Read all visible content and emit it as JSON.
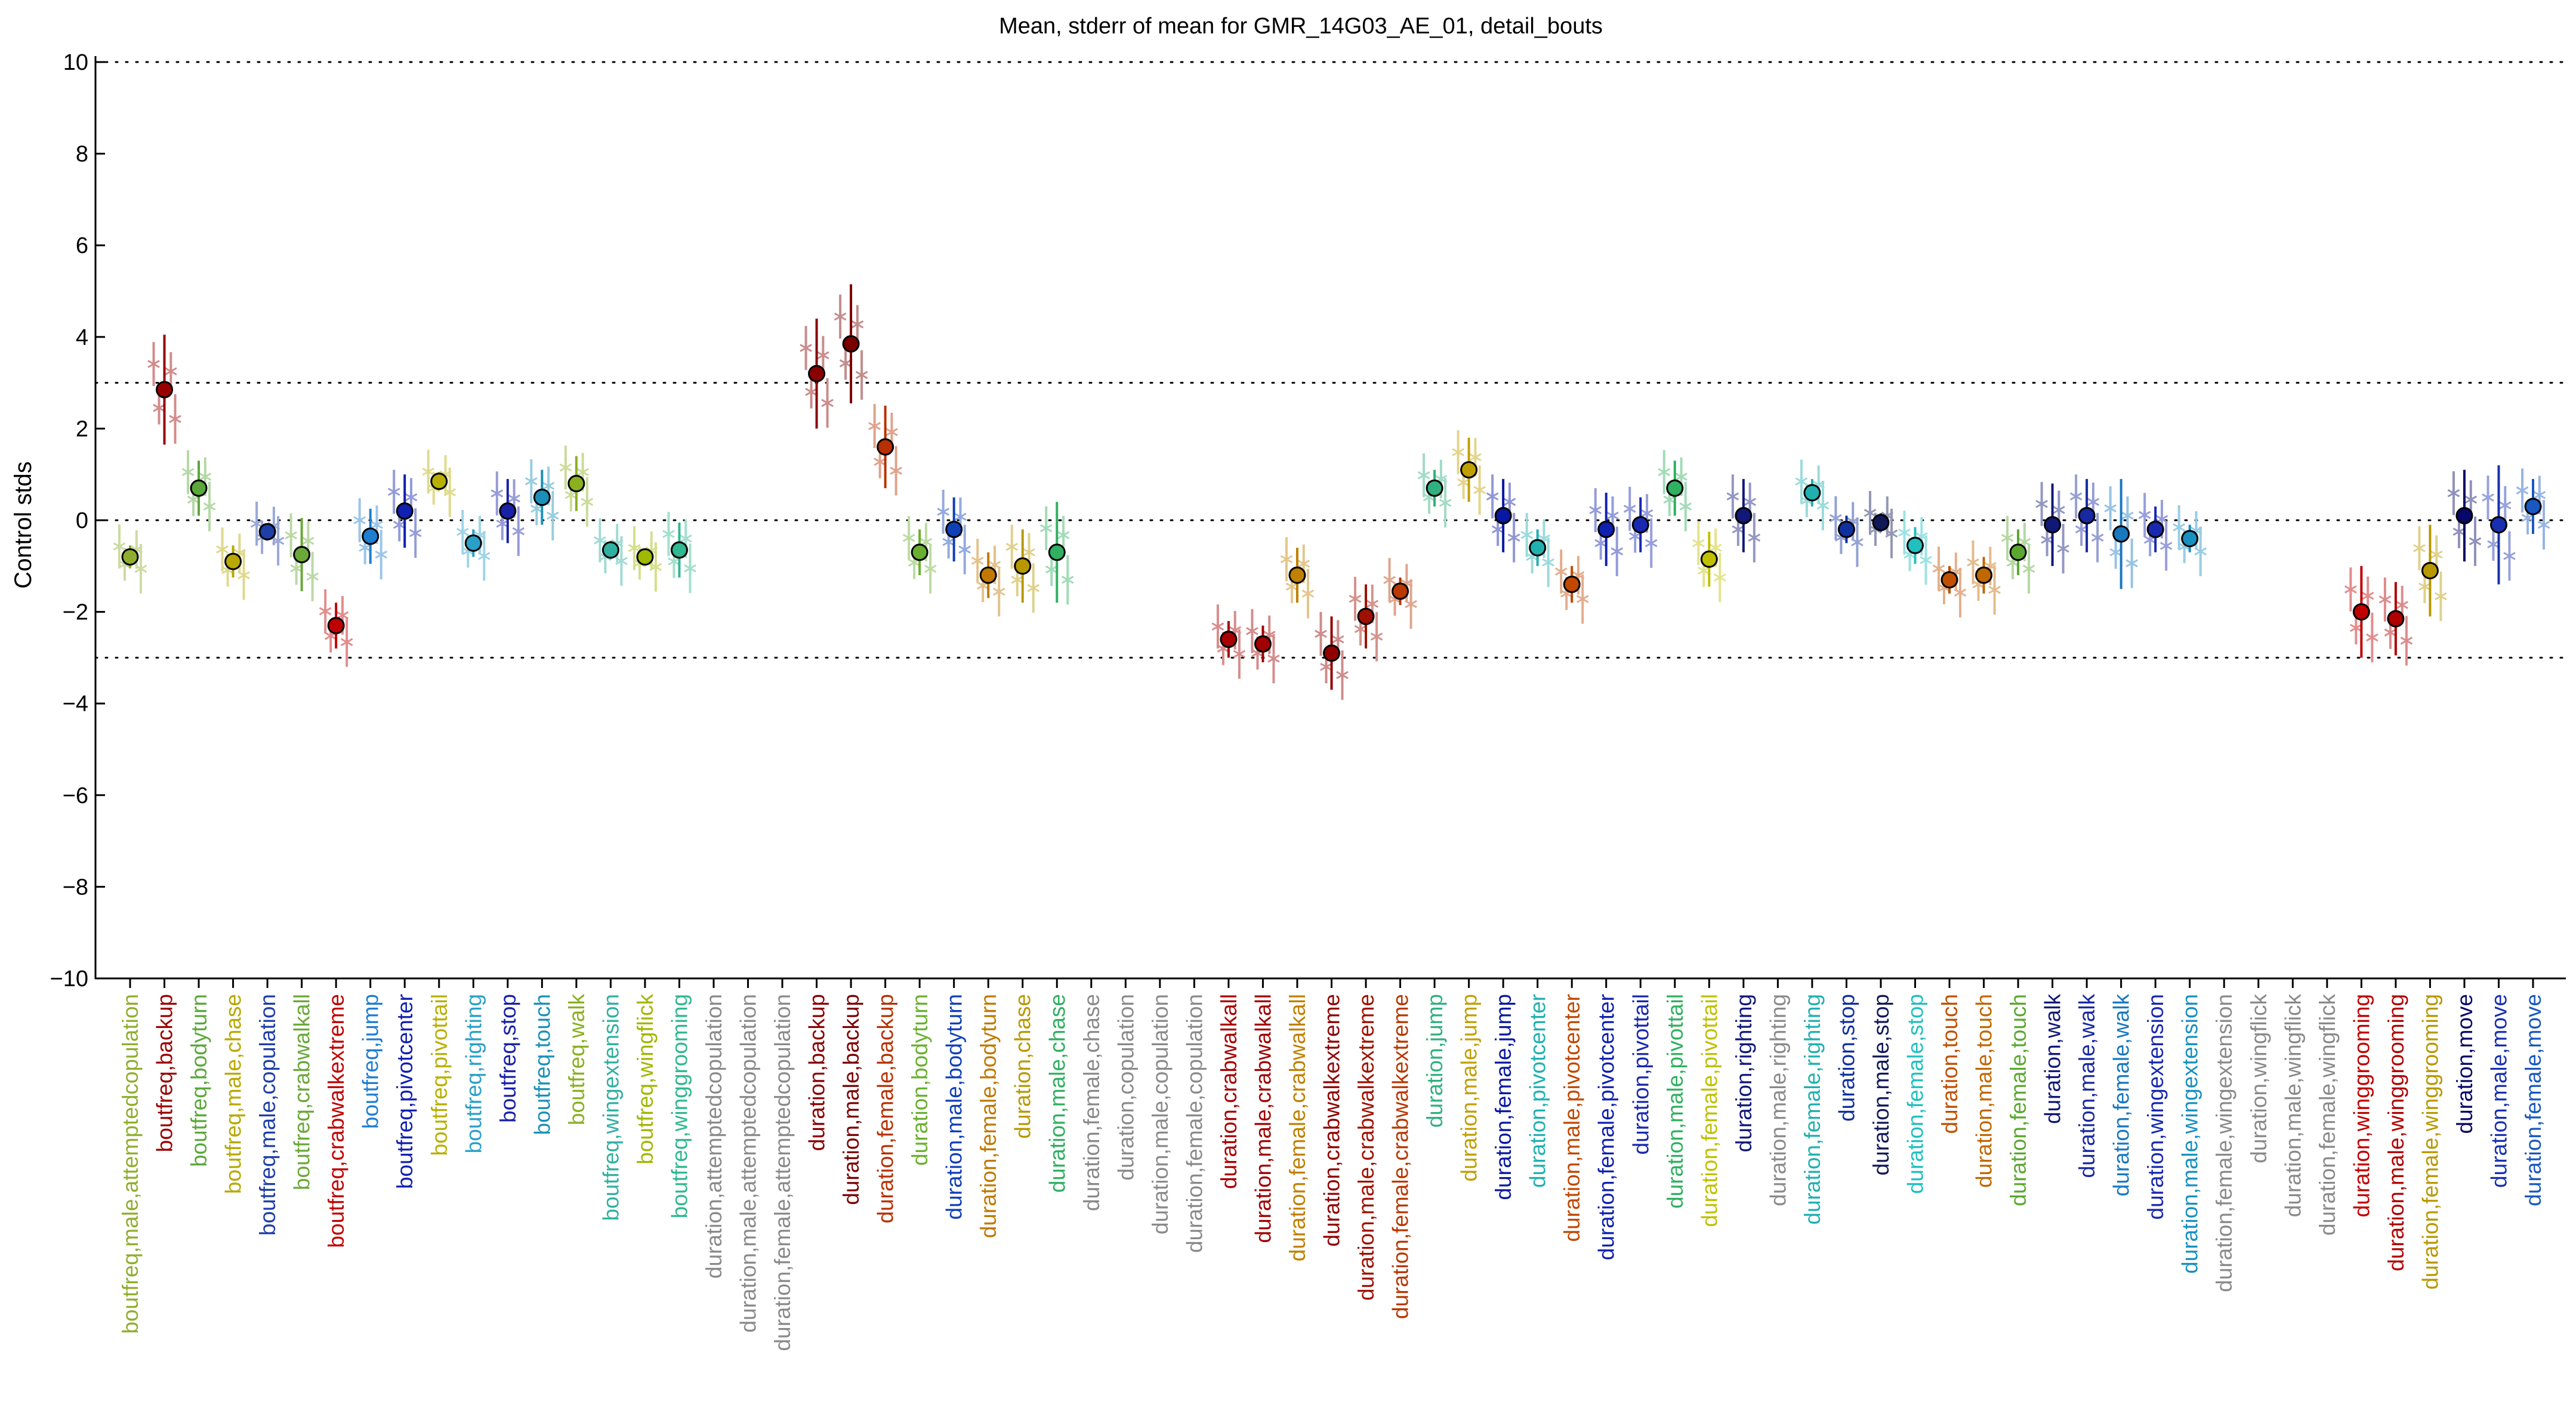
{
  "chart_data": {
    "type": "scatter",
    "title": "Mean, stderr of mean for GMR_14G03_AE_01, detail_bouts",
    "ylabel": "Control stds",
    "xlabel": "",
    "ylim": [
      -10,
      10
    ],
    "yticks": [
      -10,
      -8,
      -6,
      -4,
      -2,
      0,
      2,
      4,
      6,
      8,
      10
    ],
    "reference_lines": [
      -3,
      0,
      3,
      10,
      -10
    ],
    "grid": false,
    "categories": [
      {
        "label": "boutfreq,male,attemptedcopulation",
        "color": "#8fae2f",
        "mean": -0.8,
        "err": 0.25
      },
      {
        "label": "boutfreq,backup",
        "color": "#9b0000",
        "mean": 2.85,
        "err": 1.2
      },
      {
        "label": "boutfreq,bodyturn",
        "color": "#5aa83a",
        "mean": 0.7,
        "err": 0.6
      },
      {
        "label": "boutfreq,male,chase",
        "color": "#b8a800",
        "mean": -0.9,
        "err": 0.35
      },
      {
        "label": "boutfreq,male,copulation",
        "color": "#1e3ea8",
        "mean": -0.25,
        "err": 0.1
      },
      {
        "label": "boutfreq,crabwalkall",
        "color": "#6aa83a",
        "mean": -0.75,
        "err": 0.8
      },
      {
        "label": "boutfreq,crabwalkextreme",
        "color": "#c00000",
        "mean": -2.3,
        "err": 0.5
      },
      {
        "label": "boutfreq,jump",
        "color": "#1e7ed0",
        "mean": -0.35,
        "err": 0.6
      },
      {
        "label": "boutfreq,pivotcenter",
        "color": "#1020b0",
        "mean": 0.2,
        "err": 0.8
      },
      {
        "label": "boutfreq,pivottail",
        "color": "#b8b000",
        "mean": 0.85,
        "err": 0.2
      },
      {
        "label": "boutfreq,righting",
        "color": "#2aa0c8",
        "mean": -0.5,
        "err": 0.3
      },
      {
        "label": "boutfreq,stop",
        "color": "#1820a8",
        "mean": 0.2,
        "err": 0.7
      },
      {
        "label": "boutfreq,touch",
        "color": "#1a90b8",
        "mean": 0.5,
        "err": 0.6
      },
      {
        "label": "boutfreq,walk",
        "color": "#8ab020",
        "mean": 0.8,
        "err": 0.6
      },
      {
        "label": "boutfreq,wingextension",
        "color": "#30b0a0",
        "mean": -0.65,
        "err": 0.2
      },
      {
        "label": "boutfreq,wingflick",
        "color": "#a0b800",
        "mean": -0.8,
        "err": 0.15
      },
      {
        "label": "boutfreq,winggrooming",
        "color": "#30b890",
        "mean": -0.65,
        "err": 0.6
      },
      {
        "label": "duration,attemptedcopulation",
        "color": "#8a8a8a",
        "mean": null,
        "err": null
      },
      {
        "label": "duration,male,attemptedcopulation",
        "color": "#8a8a8a",
        "mean": null,
        "err": null
      },
      {
        "label": "duration,female,attemptedcopulation",
        "color": "#8a8a8a",
        "mean": null,
        "err": null
      },
      {
        "label": "duration,backup",
        "color": "#8a0000",
        "mean": 3.2,
        "err": 1.2
      },
      {
        "label": "duration,male,backup",
        "color": "#7a0000",
        "mean": 3.85,
        "err": 1.3
      },
      {
        "label": "duration,female,backup",
        "color": "#b83000",
        "mean": 1.6,
        "err": 0.9
      },
      {
        "label": "duration,bodyturn",
        "color": "#6ab030",
        "mean": -0.7,
        "err": 0.5
      },
      {
        "label": "duration,male,bodyturn",
        "color": "#1040b8",
        "mean": -0.2,
        "err": 0.7
      },
      {
        "label": "duration,female,bodyturn",
        "color": "#c07800",
        "mean": -1.2,
        "err": 0.5
      },
      {
        "label": "duration,chase",
        "color": "#b89800",
        "mean": -1.0,
        "err": 0.8
      },
      {
        "label": "duration,male,chase",
        "color": "#30b060",
        "mean": -0.7,
        "err": 1.1
      },
      {
        "label": "duration,female,chase",
        "color": "#8a8a8a",
        "mean": null,
        "err": null
      },
      {
        "label": "duration,copulation",
        "color": "#8a8a8a",
        "mean": null,
        "err": null
      },
      {
        "label": "duration,male,copulation",
        "color": "#8a8a8a",
        "mean": null,
        "err": null
      },
      {
        "label": "duration,female,copulation",
        "color": "#8a8a8a",
        "mean": null,
        "err": null
      },
      {
        "label": "duration,crabwalkall",
        "color": "#a80000",
        "mean": -2.6,
        "err": 0.4
      },
      {
        "label": "duration,male,crabwalkall",
        "color": "#a00000",
        "mean": -2.7,
        "err": 0.4
      },
      {
        "label": "duration,female,crabwalkall",
        "color": "#c08000",
        "mean": -1.2,
        "err": 0.6
      },
      {
        "label": "duration,crabwalkextreme",
        "color": "#900000",
        "mean": -2.9,
        "err": 0.8
      },
      {
        "label": "duration,male,crabwalkextreme",
        "color": "#a01000",
        "mean": -2.1,
        "err": 0.7
      },
      {
        "label": "duration,female,crabwalkextreme",
        "color": "#b83800",
        "mean": -1.55,
        "err": 0.3
      },
      {
        "label": "duration,jump",
        "color": "#30b080",
        "mean": 0.7,
        "err": 0.4
      },
      {
        "label": "duration,male,jump",
        "color": "#c0a000",
        "mean": 1.1,
        "err": 0.7
      },
      {
        "label": "duration,female,jump",
        "color": "#0818a0",
        "mean": 0.1,
        "err": 0.8
      },
      {
        "label": "duration,pivotcenter",
        "color": "#20b0b0",
        "mean": -0.6,
        "err": 0.4
      },
      {
        "label": "duration,male,pivotcenter",
        "color": "#c04800",
        "mean": -1.4,
        "err": 0.4
      },
      {
        "label": "duration,female,pivotcenter",
        "color": "#1020b0",
        "mean": -0.2,
        "err": 0.8
      },
      {
        "label": "duration,pivottail",
        "color": "#1828b0",
        "mean": -0.1,
        "err": 0.6
      },
      {
        "label": "duration,male,pivottail",
        "color": "#30b060",
        "mean": 0.7,
        "err": 0.6
      },
      {
        "label": "duration,female,pivottail",
        "color": "#c0c000",
        "mean": -0.85,
        "err": 0.6
      },
      {
        "label": "duration,righting",
        "color": "#101878",
        "mean": 0.1,
        "err": 0.8
      },
      {
        "label": "duration,male,righting",
        "color": "#8a8a8a",
        "mean": null,
        "err": null
      },
      {
        "label": "duration,female,righting",
        "color": "#20b0b0",
        "mean": 0.6,
        "err": 0.3
      },
      {
        "label": "duration,stop",
        "color": "#1030a0",
        "mean": -0.2,
        "err": 0.3
      },
      {
        "label": "duration,male,stop",
        "color": "#101858",
        "mean": -0.05,
        "err": 0.2
      },
      {
        "label": "duration,female,stop",
        "color": "#20c0c0",
        "mean": -0.55,
        "err": 0.4
      },
      {
        "label": "duration,touch",
        "color": "#c05000",
        "mean": -1.3,
        "err": 0.3
      },
      {
        "label": "duration,male,touch",
        "color": "#c06800",
        "mean": -1.2,
        "err": 0.4
      },
      {
        "label": "duration,female,touch",
        "color": "#5aa830",
        "mean": -0.7,
        "err": 0.5
      },
      {
        "label": "duration,walk",
        "color": "#101878",
        "mean": -0.1,
        "err": 0.9
      },
      {
        "label": "duration,male,walk",
        "color": "#1828a0",
        "mean": 0.1,
        "err": 0.8
      },
      {
        "label": "duration,female,walk",
        "color": "#1878c0",
        "mean": -0.3,
        "err": 1.2
      },
      {
        "label": "duration,wingextension",
        "color": "#1828b0",
        "mean": -0.2,
        "err": 0.5
      },
      {
        "label": "duration,male,wingextension",
        "color": "#1890c0",
        "mean": -0.4,
        "err": 0.3
      },
      {
        "label": "duration,female,wingextension",
        "color": "#8a8a8a",
        "mean": null,
        "err": null
      },
      {
        "label": "duration,wingflick",
        "color": "#8a8a8a",
        "mean": null,
        "err": null
      },
      {
        "label": "duration,male,wingflick",
        "color": "#8a8a8a",
        "mean": null,
        "err": null
      },
      {
        "label": "duration,female,wingflick",
        "color": "#8a8a8a",
        "mean": null,
        "err": null
      },
      {
        "label": "duration,winggrooming",
        "color": "#c00000",
        "mean": -2.0,
        "err": 1.0
      },
      {
        "label": "duration,male,winggrooming",
        "color": "#b00000",
        "mean": -2.15,
        "err": 0.8
      },
      {
        "label": "duration,female,winggrooming",
        "color": "#b89800",
        "mean": -1.1,
        "err": 1.0
      },
      {
        "label": "duration,move",
        "color": "#080868",
        "mean": 0.1,
        "err": 1.0
      },
      {
        "label": "duration,male,move",
        "color": "#1830b0",
        "mean": -0.1,
        "err": 1.3
      },
      {
        "label": "duration,female,move",
        "color": "#1858c0",
        "mean": 0.3,
        "err": 0.6
      }
    ]
  }
}
